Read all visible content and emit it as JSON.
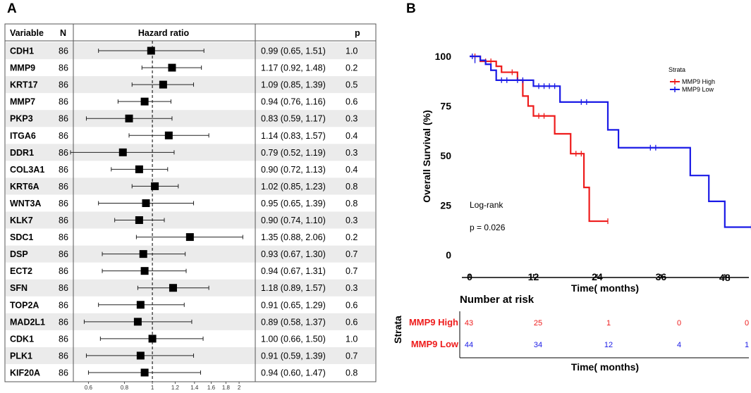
{
  "panels": {
    "a_label": "A",
    "b_label": "B"
  },
  "forest": {
    "headers": {
      "variable": "Variable",
      "n": "N",
      "hr": "Hazard ratio",
      "p": "p"
    },
    "axis_ticks": [
      "0.6",
      "0.8",
      "1",
      "1.2",
      "1.4",
      "1.6",
      "1.8",
      "2"
    ],
    "rows": [
      {
        "var": "CDH1",
        "n": "86",
        "ci": "0.99 (0.65, 1.51)",
        "p": "1.0"
      },
      {
        "var": "MMP9",
        "n": "86",
        "ci": "1.17 (0.92, 1.48)",
        "p": "0.2"
      },
      {
        "var": "KRT17",
        "n": "86",
        "ci": "1.09 (0.85, 1.39)",
        "p": "0.5"
      },
      {
        "var": "MMP7",
        "n": "86",
        "ci": "0.94 (0.76, 1.16)",
        "p": "0.6"
      },
      {
        "var": "PKP3",
        "n": "86",
        "ci": "0.83 (0.59, 1.17)",
        "p": "0.3"
      },
      {
        "var": "ITGA6",
        "n": "86",
        "ci": "1.14 (0.83, 1.57)",
        "p": "0.4"
      },
      {
        "var": "DDR1",
        "n": "86",
        "ci": "0.79 (0.52, 1.19)",
        "p": "0.3"
      },
      {
        "var": "COL3A1",
        "n": "86",
        "ci": "0.90 (0.72, 1.13)",
        "p": "0.4"
      },
      {
        "var": "KRT6A",
        "n": "86",
        "ci": "1.02 (0.85, 1.23)",
        "p": "0.8"
      },
      {
        "var": "WNT3A",
        "n": "86",
        "ci": "0.95 (0.65, 1.39)",
        "p": "0.8"
      },
      {
        "var": "KLK7",
        "n": "86",
        "ci": "0.90 (0.74, 1.10)",
        "p": "0.3"
      },
      {
        "var": "SDC1",
        "n": "86",
        "ci": "1.35 (0.88, 2.06)",
        "p": "0.2"
      },
      {
        "var": "DSP",
        "n": "86",
        "ci": "0.93 (0.67, 1.30)",
        "p": "0.7"
      },
      {
        "var": "ECT2",
        "n": "86",
        "ci": "0.94 (0.67, 1.31)",
        "p": "0.7"
      },
      {
        "var": "SFN",
        "n": "86",
        "ci": "1.18 (0.89, 1.57)",
        "p": "0.3"
      },
      {
        "var": "TOP2A",
        "n": "86",
        "ci": "0.91 (0.65, 1.29)",
        "p": "0.6"
      },
      {
        "var": "MAD2L1",
        "n": "86",
        "ci": "0.89 (0.58, 1.37)",
        "p": "0.6"
      },
      {
        "var": "CDK1",
        "n": "86",
        "ci": "1.00 (0.66, 1.50)",
        "p": "1.0"
      },
      {
        "var": "PLK1",
        "n": "86",
        "ci": "0.91 (0.59, 1.39)",
        "p": "0.7"
      },
      {
        "var": "KIF20A",
        "n": "86",
        "ci": "0.94 (0.60, 1.47)",
        "p": "0.8"
      }
    ]
  },
  "km": {
    "legend_title": "Strata",
    "legend_high": "MMP9 High",
    "legend_low": "MMP9 Low",
    "y_label": "Overall  Survival (%)",
    "x_label": "Time( months)",
    "logrank": "Log-rank",
    "pvalue": "p = 0.026",
    "risk_title": "Number at risk",
    "risk_ylabel": "Strata",
    "risk_row_high": "MMP9 High",
    "risk_row_low": "MMP9 Low",
    "risk_xlabel": "Time( months)",
    "colors": {
      "high": "#ee1c1c",
      "low": "#1a1ae6"
    }
  },
  "chart_data": [
    {
      "type": "forest",
      "title": "Hazard ratio",
      "xlabel": "",
      "x_scale": "log",
      "xlim": [
        0.55,
        2.2
      ],
      "reference_line": 1,
      "categories": [
        "CDH1",
        "MMP9",
        "KRT17",
        "MMP7",
        "PKP3",
        "ITGA6",
        "DDR1",
        "COL3A1",
        "KRT6A",
        "WNT3A",
        "KLK7",
        "SDC1",
        "DSP",
        "ECT2",
        "SFN",
        "TOP2A",
        "MAD2L1",
        "CDK1",
        "PLK1",
        "KIF20A"
      ],
      "hr": [
        0.99,
        1.17,
        1.09,
        0.94,
        0.83,
        1.14,
        0.79,
        0.9,
        1.02,
        0.95,
        0.9,
        1.35,
        0.93,
        0.94,
        1.18,
        0.91,
        0.89,
        1.0,
        0.91,
        0.94
      ],
      "lower": [
        0.65,
        0.92,
        0.85,
        0.76,
        0.59,
        0.83,
        0.52,
        0.72,
        0.85,
        0.65,
        0.74,
        0.88,
        0.67,
        0.67,
        0.89,
        0.65,
        0.58,
        0.66,
        0.59,
        0.6
      ],
      "upper": [
        1.51,
        1.48,
        1.39,
        1.16,
        1.17,
        1.57,
        1.19,
        1.13,
        1.23,
        1.39,
        1.1,
        2.06,
        1.3,
        1.31,
        1.57,
        1.29,
        1.37,
        1.5,
        1.39,
        1.47
      ]
    },
    {
      "type": "line",
      "subtype": "kaplan-meier-step",
      "xlabel": "Time( months)",
      "ylabel": "Overall  Survival (%)",
      "xlim": [
        -1,
        53
      ],
      "ylim": [
        0,
        105
      ],
      "x_ticks": [
        0,
        12,
        24,
        36,
        48
      ],
      "y_ticks": [
        0,
        25,
        50,
        75,
        100
      ],
      "legend_title": "Strata",
      "series": [
        {
          "name": "MMP9 High",
          "color": "#ee1c1c",
          "steps": [
            [
              0,
              100
            ],
            [
              2,
              97.5
            ],
            [
              5,
              95
            ],
            [
              6,
              92
            ],
            [
              9,
              88
            ],
            [
              10,
              80
            ],
            [
              11,
              75
            ],
            [
              12,
              70
            ],
            [
              16,
              61
            ],
            [
              19,
              51
            ],
            [
              21.5,
              34
            ],
            [
              22.5,
              17
            ],
            [
              26,
              17
            ]
          ],
          "censored": [
            [
              1,
              100
            ],
            [
              3,
              97.5
            ],
            [
              4,
              97.5
            ],
            [
              8,
              92
            ],
            [
              13,
              70
            ],
            [
              14,
              70
            ],
            [
              20,
              51
            ],
            [
              21,
              51
            ],
            [
              26,
              17
            ]
          ]
        },
        {
          "name": "MMP9 Low",
          "color": "#1a1ae6",
          "steps": [
            [
              0,
              100
            ],
            [
              2,
              98
            ],
            [
              3,
              96
            ],
            [
              4,
              93
            ],
            [
              5,
              88
            ],
            [
              12,
              85
            ],
            [
              17,
              77
            ],
            [
              26,
              63
            ],
            [
              28,
              54
            ],
            [
              41.5,
              40
            ],
            [
              45,
              27
            ],
            [
              48,
              14
            ],
            [
              53,
              14
            ]
          ],
          "censored": [
            [
              0.5,
              100
            ],
            [
              1,
              98
            ],
            [
              6,
              88
            ],
            [
              7,
              88
            ],
            [
              9,
              88
            ],
            [
              10,
              88
            ],
            [
              13,
              85
            ],
            [
              14,
              85
            ],
            [
              15,
              85
            ],
            [
              16,
              85
            ],
            [
              21,
              77
            ],
            [
              22,
              77
            ],
            [
              34,
              54
            ],
            [
              35,
              54
            ],
            [
              53,
              14
            ]
          ]
        }
      ]
    },
    {
      "type": "table",
      "title": "Number at risk",
      "columns": [
        0,
        12,
        24,
        36,
        48
      ],
      "rows": [
        {
          "name": "MMP9 High",
          "values": [
            43,
            25,
            1,
            0,
            0
          ]
        },
        {
          "name": "MMP9 Low",
          "values": [
            44,
            34,
            12,
            4,
            1
          ]
        }
      ]
    }
  ]
}
